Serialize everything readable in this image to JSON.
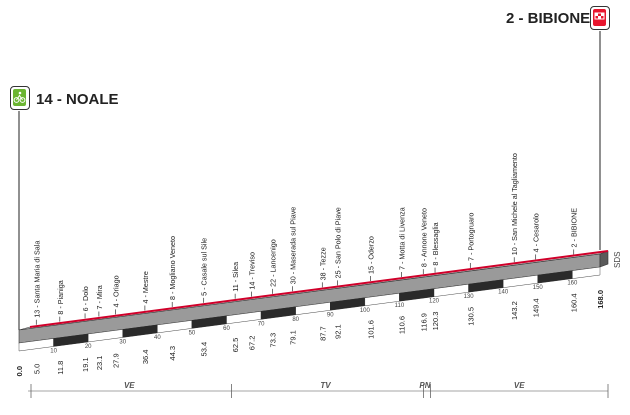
{
  "start": {
    "label": "14 - NOALE",
    "badge": "START"
  },
  "finish": {
    "label": "2 - BIBIONE",
    "badge": "FINISH"
  },
  "side_label": "SDS",
  "total_km_label": "168.0",
  "colors": {
    "profile_fill": "#9a9a9a",
    "profile_dark": "#3a3a3a",
    "road_red": "#d0002a",
    "start_green": "#6bb531",
    "finish_red": "#e8162e"
  },
  "places": [
    {
      "km": 5.0,
      "name": "13 - Santa Maria di Sala"
    },
    {
      "km": 11.8,
      "name": "8 - Pianiga"
    },
    {
      "km": 19.1,
      "name": "6 - Dolo"
    },
    {
      "km": 23.1,
      "name": "7 - Mira"
    },
    {
      "km": 27.9,
      "name": "4 - Oriago"
    },
    {
      "km": 36.4,
      "name": "4 - Mestre"
    },
    {
      "km": 44.3,
      "name": "8 - Mogliano Veneto"
    },
    {
      "km": 53.4,
      "name": "5 - Casale sul Sile"
    },
    {
      "km": 62.5,
      "name": "11 - Silea"
    },
    {
      "km": 67.2,
      "name": "14 - Treviso"
    },
    {
      "km": 73.3,
      "name": "22 - Lancenigo"
    },
    {
      "km": 79.1,
      "name": "30 - Maserada sul Piave"
    },
    {
      "km": 87.7,
      "name": "38 - Tezze"
    },
    {
      "km": 92.1,
      "name": "25 - San Polo di Piave"
    },
    {
      "km": 101.6,
      "name": "15 - Oderzo"
    },
    {
      "km": 110.6,
      "name": "7 - Motta di Livenza"
    },
    {
      "km": 116.9,
      "name": "8 - Annone Veneto"
    },
    {
      "km": 120.3,
      "name": "8 - Blessaglia"
    },
    {
      "km": 130.5,
      "name": "7 - Portogruaro"
    },
    {
      "km": 143.2,
      "name": "10 - San Michele al Tagliamento"
    },
    {
      "km": 149.4,
      "name": "4 - Cesarolo"
    },
    {
      "km": 160.4,
      "name": "2 - BIBIONE"
    }
  ],
  "km_labels": [
    "0.0",
    "5.0",
    "11.8",
    "19.1",
    "23.1",
    "27.9",
    "36.4",
    "44.3",
    "53.4",
    "62.5",
    "67.2",
    "73.3",
    "79.1",
    "87.7",
    "92.1",
    "101.6",
    "110.6",
    "116.9",
    "120.3",
    "130.5",
    "143.2",
    "149.4",
    "160.4",
    "168.0"
  ],
  "scale_ticks": [
    "10",
    "20",
    "30",
    "40",
    "50",
    "60",
    "70",
    "80",
    "90",
    "100",
    "110",
    "120",
    "130",
    "140",
    "150",
    "160"
  ],
  "provinces": [
    {
      "code": "VE",
      "from_km": 0,
      "to_km": 58
    },
    {
      "code": "TV",
      "from_km": 58,
      "to_km": 113.5
    },
    {
      "code": "PN",
      "from_km": 113.5,
      "to_km": 115.5
    },
    {
      "code": "VE",
      "from_km": 115.5,
      "to_km": 168
    }
  ]
}
